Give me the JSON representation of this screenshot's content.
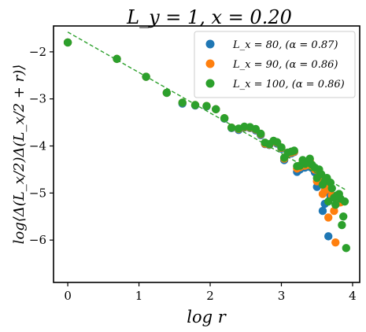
{
  "chart_data": {
    "type": "scatter",
    "title": "L_y = 1, x = 0.20",
    "xlabel": "log r",
    "ylabel": "log⟨Δ(L_x/2)Δ(L_x/2 + r)⟩",
    "xlim": [
      -0.2,
      4.1
    ],
    "ylim": [
      -6.9,
      -1.45
    ],
    "xticks": [
      0,
      1,
      2,
      3,
      4
    ],
    "yticks": [
      -6,
      -5,
      -4,
      -3,
      -2
    ],
    "xtick_labels": [
      "0",
      "1",
      "2",
      "3",
      "4"
    ],
    "ytick_labels": [
      "−6",
      "−5",
      "−4",
      "−3",
      "−2"
    ],
    "grid": false,
    "legend_position": "top-right",
    "series": [
      {
        "name": "L_x = 80, (α = 0.87)",
        "color": "#1f77b4",
        "points": [
          [
            0.0,
            -1.8
          ],
          [
            0.69,
            -2.15
          ],
          [
            1.1,
            -2.53
          ],
          [
            1.39,
            -2.87
          ],
          [
            1.61,
            -3.1
          ],
          [
            1.79,
            -3.14
          ],
          [
            1.95,
            -3.16
          ],
          [
            2.08,
            -3.22
          ],
          [
            2.2,
            -3.42
          ],
          [
            2.3,
            -3.62
          ],
          [
            2.4,
            -3.66
          ],
          [
            2.48,
            -3.61
          ],
          [
            2.56,
            -3.62
          ],
          [
            2.64,
            -3.67
          ],
          [
            2.71,
            -3.77
          ],
          [
            2.77,
            -3.96
          ],
          [
            2.83,
            -3.98
          ],
          [
            2.89,
            -3.91
          ],
          [
            2.94,
            -3.95
          ],
          [
            3.0,
            -4.06
          ],
          [
            3.04,
            -4.3
          ],
          [
            3.09,
            -4.18
          ],
          [
            3.14,
            -4.16
          ],
          [
            3.18,
            -4.13
          ],
          [
            3.22,
            -4.55
          ],
          [
            3.26,
            -4.5
          ],
          [
            3.3,
            -4.37
          ],
          [
            3.33,
            -4.46
          ],
          [
            3.37,
            -4.44
          ],
          [
            3.4,
            -4.34
          ],
          [
            3.43,
            -4.47
          ],
          [
            3.47,
            -4.56
          ],
          [
            3.5,
            -4.87
          ],
          [
            3.53,
            -4.62
          ],
          [
            3.56,
            -4.79
          ],
          [
            3.58,
            -5.38
          ],
          [
            3.61,
            -5.23
          ],
          [
            3.64,
            -4.97
          ],
          [
            3.66,
            -5.92
          ],
          [
            3.69,
            -5.07
          ]
        ]
      },
      {
        "name": "L_x = 90, (α = 0.86)",
        "color": "#ff7f0e",
        "points": [
          [
            0.0,
            -1.8
          ],
          [
            0.69,
            -2.15
          ],
          [
            1.1,
            -2.53
          ],
          [
            1.39,
            -2.87
          ],
          [
            1.61,
            -3.08
          ],
          [
            1.79,
            -3.13
          ],
          [
            1.95,
            -3.15
          ],
          [
            2.08,
            -3.22
          ],
          [
            2.2,
            -3.41
          ],
          [
            2.3,
            -3.61
          ],
          [
            2.4,
            -3.64
          ],
          [
            2.48,
            -3.6
          ],
          [
            2.56,
            -3.61
          ],
          [
            2.64,
            -3.65
          ],
          [
            2.71,
            -3.75
          ],
          [
            2.77,
            -3.95
          ],
          [
            2.83,
            -3.97
          ],
          [
            2.89,
            -3.9
          ],
          [
            2.94,
            -3.93
          ],
          [
            3.0,
            -4.04
          ],
          [
            3.04,
            -4.27
          ],
          [
            3.09,
            -4.16
          ],
          [
            3.14,
            -4.14
          ],
          [
            3.18,
            -4.12
          ],
          [
            3.22,
            -4.48
          ],
          [
            3.26,
            -4.45
          ],
          [
            3.3,
            -4.33
          ],
          [
            3.33,
            -4.42
          ],
          [
            3.37,
            -4.4
          ],
          [
            3.4,
            -4.3
          ],
          [
            3.43,
            -4.43
          ],
          [
            3.47,
            -4.5
          ],
          [
            3.5,
            -4.75
          ],
          [
            3.53,
            -4.55
          ],
          [
            3.56,
            -4.68
          ],
          [
            3.58,
            -5.02
          ],
          [
            3.61,
            -4.95
          ],
          [
            3.64,
            -4.85
          ],
          [
            3.66,
            -5.52
          ],
          [
            3.69,
            -4.92
          ],
          [
            3.71,
            -5.05
          ],
          [
            3.74,
            -5.38
          ],
          [
            3.76,
            -6.05
          ],
          [
            3.78,
            -5.22
          ],
          [
            3.81,
            -5.11
          ],
          [
            3.83,
            -5.2
          ]
        ]
      },
      {
        "name": "L_x = 100, (α = 0.86)",
        "color": "#2ca02c",
        "points": [
          [
            0.0,
            -1.8
          ],
          [
            0.69,
            -2.15
          ],
          [
            1.1,
            -2.53
          ],
          [
            1.39,
            -2.87
          ],
          [
            1.61,
            -3.08
          ],
          [
            1.79,
            -3.13
          ],
          [
            1.95,
            -3.15
          ],
          [
            2.08,
            -3.22
          ],
          [
            2.2,
            -3.41
          ],
          [
            2.3,
            -3.61
          ],
          [
            2.4,
            -3.63
          ],
          [
            2.48,
            -3.59
          ],
          [
            2.56,
            -3.6
          ],
          [
            2.64,
            -3.64
          ],
          [
            2.71,
            -3.74
          ],
          [
            2.77,
            -3.93
          ],
          [
            2.83,
            -3.96
          ],
          [
            2.89,
            -3.89
          ],
          [
            2.94,
            -3.92
          ],
          [
            3.0,
            -4.03
          ],
          [
            3.04,
            -4.25
          ],
          [
            3.09,
            -4.14
          ],
          [
            3.14,
            -4.12
          ],
          [
            3.18,
            -4.1
          ],
          [
            3.22,
            -4.43
          ],
          [
            3.26,
            -4.42
          ],
          [
            3.3,
            -4.3
          ],
          [
            3.33,
            -4.38
          ],
          [
            3.37,
            -4.36
          ],
          [
            3.4,
            -4.27
          ],
          [
            3.43,
            -4.4
          ],
          [
            3.47,
            -4.46
          ],
          [
            3.5,
            -4.68
          ],
          [
            3.53,
            -4.5
          ],
          [
            3.56,
            -4.6
          ],
          [
            3.58,
            -4.82
          ],
          [
            3.61,
            -4.75
          ],
          [
            3.64,
            -4.68
          ],
          [
            3.66,
            -5.18
          ],
          [
            3.69,
            -4.78
          ],
          [
            3.71,
            -4.9
          ],
          [
            3.74,
            -5.1
          ],
          [
            3.76,
            -5.25
          ],
          [
            3.78,
            -5.05
          ],
          [
            3.81,
            -5.02
          ],
          [
            3.83,
            -5.12
          ],
          [
            3.85,
            -5.68
          ],
          [
            3.87,
            -5.5
          ],
          [
            3.89,
            -5.18
          ],
          [
            3.91,
            -6.17
          ]
        ]
      }
    ],
    "fit_line": {
      "style": "dashed",
      "color": "#2ca02c",
      "x": [
        0,
        3.9
      ],
      "y": [
        -1.58,
        -4.93
      ]
    }
  }
}
